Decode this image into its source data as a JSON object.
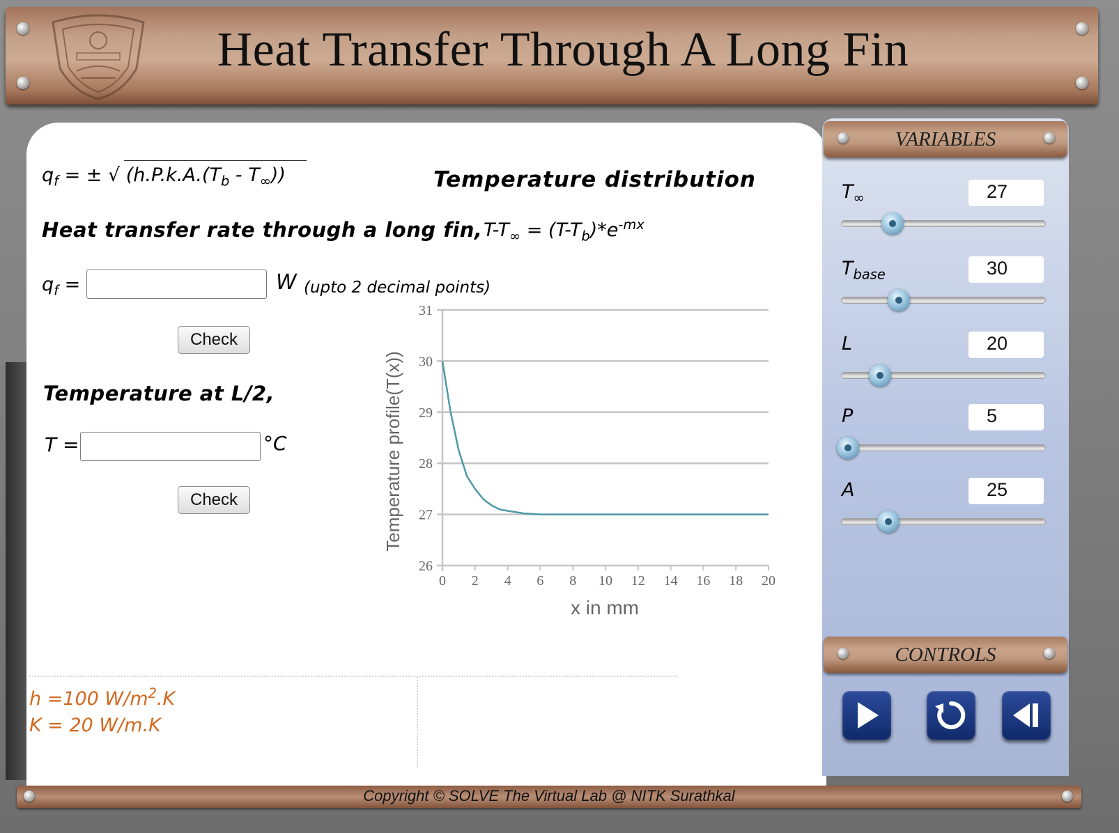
{
  "header": {
    "title": "Heat Transfer Through A Long Fin"
  },
  "formulas": {
    "qf_line": "= ± √ (h.P.k.A.(T",
    "tempdist_title": "Temperature distribution",
    "heat_rate_label": "Heat transfer rate through a long fin,",
    "qf_input_unit": "W",
    "decimal_note": "(upto 2 decimal points)",
    "temp_half_label": "Temperature at L/2,",
    "t_label": "T =",
    "degc": "°C"
  },
  "inputs": {
    "qf_value": "",
    "t_value": ""
  },
  "buttons": {
    "check1": "Check",
    "check2": "Check"
  },
  "constants": {
    "h": "h =100 W/m",
    "k": "K = 20 W/m.K"
  },
  "chart_data": {
    "type": "line",
    "xlabel": "x in mm",
    "ylabel": "Temperature profile(T(x))",
    "xlim": [
      0,
      20
    ],
    "ylim": [
      26,
      31
    ],
    "xticks": [
      0,
      2,
      4,
      6,
      8,
      10,
      12,
      14,
      16,
      18,
      20
    ],
    "yticks": [
      26,
      27,
      28,
      29,
      30,
      31
    ],
    "grid": "horizontal",
    "color": "#4e9aa6",
    "x": [
      0,
      0.5,
      1,
      1.5,
      2,
      2.5,
      3,
      3.5,
      4,
      5,
      6,
      8,
      10,
      12,
      14,
      16,
      18,
      20
    ],
    "y": [
      30,
      29.0,
      28.25,
      27.75,
      27.5,
      27.3,
      27.18,
      27.1,
      27.07,
      27.02,
      27.0,
      27.0,
      27.0,
      27.0,
      27.0,
      27.0,
      27.0,
      27.0
    ]
  },
  "variables_panel": {
    "title": "VARIABLES",
    "items": [
      {
        "label": "T",
        "sub": "∞",
        "value": "27",
        "level": 0.25
      },
      {
        "label": "T",
        "sub": "base",
        "value": "30",
        "level": 0.28
      },
      {
        "label": "L",
        "sub": "",
        "value": "20",
        "level": 0.19
      },
      {
        "label": "P",
        "sub": "",
        "value": "5",
        "level": 0.03
      },
      {
        "label": "A",
        "sub": "",
        "value": "25",
        "level": 0.23
      }
    ]
  },
  "controls_panel": {
    "title": "CONTROLS",
    "buttons": [
      "play-icon",
      "reset-icon",
      "step-back-icon"
    ]
  },
  "footer": {
    "text": "Copyright © SOLVE The Virtual Lab @ NITK Surathkal"
  },
  "colors": {
    "header": "#c3a088",
    "panel": "#b8c5e2",
    "constants": "#d2691e",
    "button": "#102a6a"
  }
}
